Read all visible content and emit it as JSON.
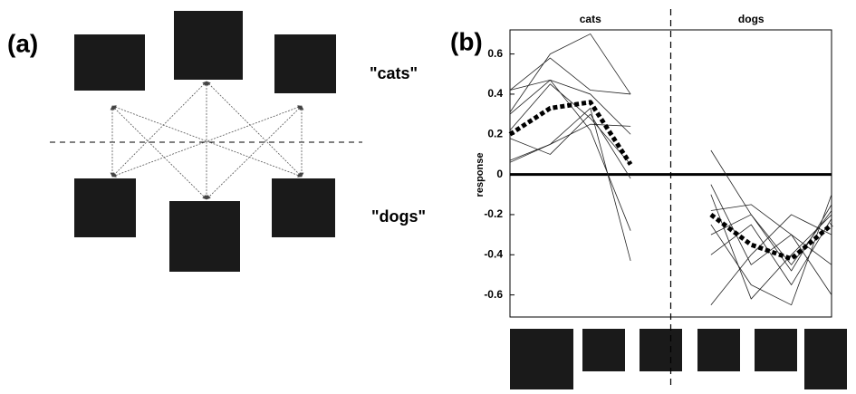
{
  "panel_a": {
    "label": "(a)",
    "top_label": "\"cats\"",
    "bottom_label": "\"dogs\""
  },
  "chart_data": {
    "type": "line",
    "panel_label": "(b)",
    "ylabel": "response",
    "group_labels": [
      "cats",
      "dogs"
    ],
    "x": [
      1,
      2,
      3,
      4,
      6,
      7,
      8,
      9
    ],
    "xlim": [
      1,
      9
    ],
    "ylim": [
      -0.71,
      0.72
    ],
    "yticks": [
      0.6,
      0.4,
      0.2,
      0,
      -0.2,
      -0.4,
      -0.6
    ],
    "hline": 0,
    "vline": 5,
    "series": [
      {
        "color": "#222222",
        "width": 0.8,
        "dashed": false,
        "values": [
          0.31,
          0.6,
          0.7,
          0.4,
          null,
          null,
          null,
          null
        ]
      },
      {
        "color": "#222222",
        "width": 0.8,
        "dashed": false,
        "values": [
          0.42,
          0.58,
          0.42,
          0.4,
          null,
          null,
          null,
          null
        ]
      },
      {
        "color": "#222222",
        "width": 0.8,
        "dashed": false,
        "values": [
          0.3,
          0.47,
          0.4,
          0.2,
          null,
          null,
          null,
          null
        ]
      },
      {
        "color": "#222222",
        "width": 0.8,
        "dashed": false,
        "values": [
          0.22,
          0.45,
          0.28,
          0.05,
          null,
          null,
          null,
          null
        ]
      },
      {
        "color": "#222222",
        "width": 0.8,
        "dashed": false,
        "values": [
          0.06,
          0.15,
          0.33,
          -0.43,
          null,
          null,
          null,
          null
        ]
      },
      {
        "color": "#222222",
        "width": 0.8,
        "dashed": false,
        "values": [
          0.18,
          0.1,
          0.3,
          -0.02,
          null,
          null,
          null,
          null
        ]
      },
      {
        "color": "#222222",
        "width": 0.8,
        "dashed": false,
        "values": [
          0.07,
          0.15,
          0.25,
          0.24,
          null,
          null,
          null,
          null
        ]
      },
      {
        "color": "#222222",
        "width": 0.8,
        "dashed": false,
        "values": [
          0.42,
          0.47,
          0.22,
          -0.28,
          null,
          null,
          null,
          null
        ]
      },
      {
        "color": "#222222",
        "width": 0.8,
        "dashed": false,
        "values": [
          null,
          null,
          null,
          null,
          0.12,
          -0.2,
          -0.48,
          -0.15
        ]
      },
      {
        "color": "#222222",
        "width": 0.8,
        "dashed": false,
        "values": [
          null,
          null,
          null,
          null,
          -0.1,
          -0.62,
          -0.4,
          -0.2
        ]
      },
      {
        "color": "#222222",
        "width": 0.8,
        "dashed": false,
        "values": [
          null,
          null,
          null,
          null,
          -0.18,
          -0.15,
          -0.3,
          -0.45
        ]
      },
      {
        "color": "#222222",
        "width": 0.8,
        "dashed": false,
        "values": [
          null,
          null,
          null,
          null,
          -0.4,
          -0.25,
          -0.55,
          -0.22
        ]
      },
      {
        "color": "#222222",
        "width": 0.8,
        "dashed": false,
        "values": [
          null,
          null,
          null,
          null,
          -0.65,
          -0.4,
          -0.2,
          -0.3
        ]
      },
      {
        "color": "#222222",
        "width": 0.8,
        "dashed": false,
        "values": [
          null,
          null,
          null,
          null,
          -0.25,
          -0.55,
          -0.65,
          -0.1
        ]
      },
      {
        "color": "#222222",
        "width": 0.8,
        "dashed": false,
        "values": [
          null,
          null,
          null,
          null,
          -0.05,
          -0.45,
          -0.3,
          -0.6
        ]
      },
      {
        "color": "#222222",
        "width": 0.8,
        "dashed": false,
        "values": [
          null,
          null,
          null,
          null,
          -0.3,
          -0.2,
          -0.45,
          -0.18
        ]
      },
      {
        "color": "#000000",
        "width": 5,
        "dashed": true,
        "values": [
          0.2,
          0.33,
          0.36,
          0.05,
          null,
          null,
          null,
          null
        ]
      },
      {
        "color": "#000000",
        "width": 5,
        "dashed": true,
        "values": [
          null,
          null,
          null,
          null,
          -0.2,
          -0.35,
          -0.42,
          -0.25
        ]
      }
    ]
  }
}
